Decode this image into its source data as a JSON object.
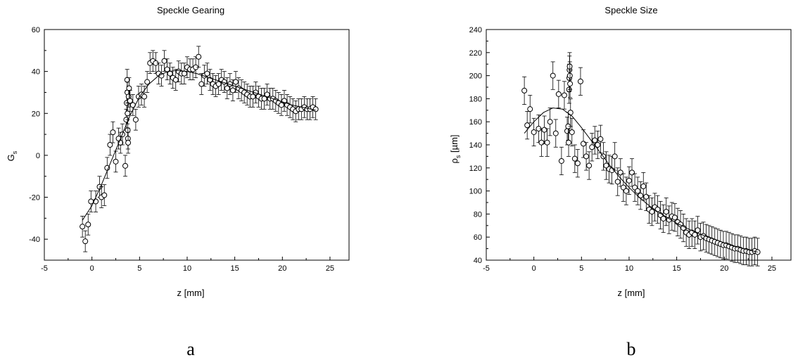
{
  "chart_data": [
    {
      "type": "scatter",
      "panel_label": "a",
      "title": "Speckle Gearing",
      "xlabel": "z [mm]",
      "ylabel_main": "G",
      "ylabel_sub": "s",
      "xlim": [
        -5,
        27
      ],
      "ylim": [
        -50,
        60
      ],
      "xticks": [
        -5,
        0,
        5,
        10,
        15,
        20,
        25
      ],
      "yticks": [
        -40,
        -20,
        0,
        20,
        40,
        60
      ],
      "grid": false,
      "series": [
        {
          "kind": "points_with_errorbars",
          "marker": "open-circle",
          "x": [
            -1.0,
            -0.7,
            -0.4,
            -0.1,
            0.4,
            0.8,
            1.0,
            1.3,
            1.6,
            1.9,
            2.2,
            2.5,
            2.8,
            3.0,
            3.2,
            3.5,
            3.6,
            3.65,
            3.7,
            3.72,
            3.74,
            3.76,
            3.78,
            3.8,
            3.85,
            3.9,
            4.0,
            4.3,
            4.6,
            4.9,
            5.2,
            5.5,
            5.8,
            6.1,
            6.4,
            6.7,
            7.0,
            7.3,
            7.6,
            7.9,
            8.2,
            8.5,
            8.8,
            9.1,
            9.4,
            9.7,
            10.0,
            10.3,
            10.6,
            10.9,
            11.2,
            11.5,
            11.8,
            12.1,
            12.4,
            12.7,
            13.0,
            13.3,
            13.6,
            13.9,
            14.2,
            14.5,
            14.8,
            15.1,
            15.4,
            15.7,
            16.0,
            16.3,
            16.6,
            16.9,
            17.2,
            17.5,
            17.8,
            18.1,
            18.4,
            18.7,
            19.0,
            19.3,
            19.6,
            19.9,
            20.2,
            20.5,
            20.8,
            21.1,
            21.4,
            21.7,
            22.0,
            22.3,
            22.6,
            22.9,
            23.2,
            23.5
          ],
          "y": [
            -34,
            -41,
            -33,
            -22,
            -22,
            -15,
            -20,
            -19,
            -6,
            5,
            11,
            -3,
            8,
            6,
            10,
            -5,
            17,
            25,
            36,
            30,
            20,
            12,
            8,
            6,
            28,
            32,
            26,
            24,
            17,
            28,
            29,
            28,
            35,
            44,
            45,
            44,
            39,
            38,
            45,
            41,
            39,
            37,
            36,
            40,
            39,
            39,
            42,
            41,
            41,
            42,
            47,
            34,
            38,
            39,
            36,
            34,
            33,
            34,
            36,
            35,
            32,
            34,
            31,
            35,
            32,
            31,
            30,
            29,
            28,
            28,
            30,
            28,
            27,
            27,
            29,
            27,
            27,
            26,
            25,
            24,
            26,
            24,
            23,
            22,
            21,
            22,
            22,
            23,
            22,
            22,
            23,
            22
          ],
          "yerr": 5
        },
        {
          "kind": "fit_line",
          "x": [
            -1.0,
            0.0,
            1.0,
            2.0,
            3.0,
            4.0,
            5.0,
            6.0,
            7.0,
            8.0,
            9.0,
            10.0,
            11.0,
            12.0,
            13.0,
            14.0,
            15.0,
            16.0,
            17.0,
            18.0,
            19.0,
            20.0,
            21.0,
            22.0,
            23.0,
            23.5
          ],
          "y": [
            -31,
            -24,
            -14,
            -3,
            8,
            19,
            28,
            34,
            38,
            40,
            40.5,
            40,
            39,
            37.5,
            36,
            34.5,
            33,
            31.5,
            30,
            28.5,
            27,
            25.5,
            24,
            23,
            22,
            21.5
          ]
        }
      ]
    },
    {
      "type": "scatter",
      "panel_label": "b",
      "title": "Speckle Size",
      "xlabel": "z [mm]",
      "ylabel_main": "ρ",
      "ylabel_sub": "s",
      "ylabel_unit": " [µm]",
      "xlim": [
        -5,
        27
      ],
      "ylim": [
        40,
        240
      ],
      "xticks": [
        -5,
        0,
        5,
        10,
        15,
        20,
        25
      ],
      "yticks": [
        40,
        60,
        80,
        100,
        120,
        140,
        160,
        180,
        200,
        220,
        240
      ],
      "grid": false,
      "series": [
        {
          "kind": "points_with_errorbars",
          "marker": "open-circle",
          "x": [
            -1.0,
            -0.7,
            -0.4,
            0.0,
            0.5,
            0.8,
            1.1,
            1.4,
            1.7,
            2.0,
            2.3,
            2.6,
            2.9,
            3.2,
            3.5,
            3.6,
            3.65,
            3.7,
            3.72,
            3.74,
            3.76,
            3.78,
            3.8,
            3.85,
            4.0,
            4.3,
            4.6,
            4.9,
            5.2,
            5.5,
            5.8,
            6.1,
            6.4,
            6.7,
            7.0,
            7.3,
            7.6,
            7.9,
            8.2,
            8.5,
            8.8,
            9.1,
            9.4,
            9.7,
            10.0,
            10.3,
            10.6,
            10.9,
            11.2,
            11.5,
            11.8,
            12.1,
            12.4,
            12.7,
            13.0,
            13.3,
            13.6,
            13.9,
            14.2,
            14.5,
            14.8,
            15.1,
            15.4,
            15.7,
            16.0,
            16.3,
            16.6,
            16.9,
            17.2,
            17.5,
            17.8,
            18.1,
            18.4,
            18.7,
            19.0,
            19.3,
            19.6,
            19.9,
            20.2,
            20.5,
            20.8,
            21.1,
            21.4,
            21.7,
            22.0,
            22.3,
            22.6,
            22.9,
            23.2,
            23.5
          ],
          "y": [
            187,
            157,
            171,
            151,
            154,
            142,
            153,
            142,
            160,
            200,
            150,
            184,
            126,
            183,
            152,
            156,
            142,
            188,
            198,
            205,
            208,
            200,
            193,
            168,
            151,
            128,
            124,
            195,
            141,
            130,
            122,
            138,
            144,
            140,
            145,
            130,
            122,
            119,
            118,
            130,
            108,
            116,
            103,
            100,
            109,
            116,
            103,
            100,
            96,
            104,
            95,
            84,
            82,
            86,
            84,
            79,
            76,
            82,
            75,
            78,
            77,
            73,
            71,
            68,
            64,
            62,
            64,
            62,
            66,
            60,
            61,
            59,
            58,
            57,
            56,
            55,
            54,
            53,
            53,
            52,
            51,
            50,
            50,
            49,
            48,
            48,
            47,
            47,
            48,
            47
          ],
          "yerr": 12
        },
        {
          "kind": "fit_line",
          "x": [
            -1.0,
            0.0,
            1.0,
            2.0,
            3.0,
            4.0,
            5.0,
            6.0,
            7.0,
            8.0,
            9.0,
            10.0,
            11.0,
            12.0,
            13.0,
            14.0,
            15.0,
            16.0,
            17.0,
            18.0,
            19.0,
            20.0,
            21.0,
            22.0,
            23.0,
            23.5
          ],
          "y": [
            150,
            160,
            168,
            172,
            171,
            165,
            155,
            144,
            133,
            122,
            112,
            103,
            95,
            88,
            82,
            77,
            72,
            68,
            64,
            61,
            58,
            55,
            52,
            50,
            48,
            47
          ]
        }
      ]
    }
  ]
}
